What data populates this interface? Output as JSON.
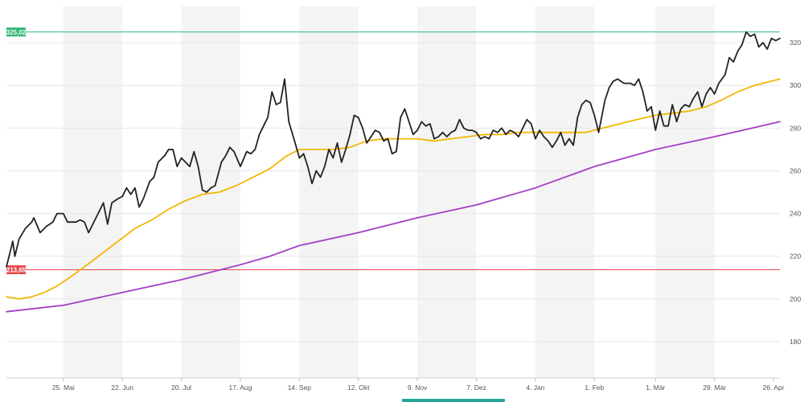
{
  "chart_data": {
    "type": "line",
    "title": "",
    "xlabel": "",
    "ylabel": "",
    "ylim": [
      163,
      337
    ],
    "y_ticks": [
      180,
      200,
      220,
      240,
      260,
      280,
      300,
      320
    ],
    "x_range": [
      "2023-04-28",
      "2024-04-29"
    ],
    "x_ticks": [
      {
        "date": "2023-05-25",
        "label": "25. Mai"
      },
      {
        "date": "2023-06-22",
        "label": "22. Jun"
      },
      {
        "date": "2023-07-20",
        "label": "20. Jul"
      },
      {
        "date": "2023-08-17",
        "label": "17. Aug"
      },
      {
        "date": "2023-09-14",
        "label": "14. Sep"
      },
      {
        "date": "2023-10-12",
        "label": "12. Okt"
      },
      {
        "date": "2023-11-09",
        "label": "9. Nov"
      },
      {
        "date": "2023-12-07",
        "label": "7. Dez"
      },
      {
        "date": "2024-01-04",
        "label": "4. Jan"
      },
      {
        "date": "2024-02-01",
        "label": "1. Feb"
      },
      {
        "date": "2024-03-01",
        "label": "1. Mär"
      },
      {
        "date": "2024-03-29",
        "label": "29. Mär"
      },
      {
        "date": "2024-04-26",
        "label": "26. Apr"
      }
    ],
    "grid": true,
    "legend": "none",
    "reference_lines": [
      {
        "label": "325,02",
        "value": 325.02,
        "color": "#2bb673"
      },
      {
        "label": "213,65",
        "value": 213.65,
        "color": "#e5484d"
      }
    ],
    "series": [
      {
        "color": "#222222",
        "points": [
          [
            "2023-04-28",
            215
          ],
          [
            "2023-05-01",
            227
          ],
          [
            "2023-05-02",
            220
          ],
          [
            "2023-05-04",
            228
          ],
          [
            "2023-05-07",
            233
          ],
          [
            "2023-05-10",
            236
          ],
          [
            "2023-05-11",
            238
          ],
          [
            "2023-05-14",
            231
          ],
          [
            "2023-05-17",
            234
          ],
          [
            "2023-05-20",
            236
          ],
          [
            "2023-05-22",
            240
          ],
          [
            "2023-05-25",
            240
          ],
          [
            "2023-05-27",
            236
          ],
          [
            "2023-05-31",
            236
          ],
          [
            "2023-06-02",
            237
          ],
          [
            "2023-06-04",
            236
          ],
          [
            "2023-06-06",
            231
          ],
          [
            "2023-06-09",
            237
          ],
          [
            "2023-06-13",
            245
          ],
          [
            "2023-06-15",
            235
          ],
          [
            "2023-06-17",
            245
          ],
          [
            "2023-06-20",
            247
          ],
          [
            "2023-06-22",
            248
          ],
          [
            "2023-06-24",
            252
          ],
          [
            "2023-06-26",
            249
          ],
          [
            "2023-06-28",
            252
          ],
          [
            "2023-06-30",
            243
          ],
          [
            "2023-07-02",
            247
          ],
          [
            "2023-07-05",
            255
          ],
          [
            "2023-07-07",
            257
          ],
          [
            "2023-07-09",
            264
          ],
          [
            "2023-07-12",
            267
          ],
          [
            "2023-07-14",
            270
          ],
          [
            "2023-07-16",
            270
          ],
          [
            "2023-07-18",
            262
          ],
          [
            "2023-07-20",
            266
          ],
          [
            "2023-07-22",
            264
          ],
          [
            "2023-07-24",
            262
          ],
          [
            "2023-07-26",
            269
          ],
          [
            "2023-07-28",
            262
          ],
          [
            "2023-07-30",
            251
          ],
          [
            "2023-08-01",
            250
          ],
          [
            "2023-08-03",
            252
          ],
          [
            "2023-08-05",
            253
          ],
          [
            "2023-08-08",
            264
          ],
          [
            "2023-08-10",
            267
          ],
          [
            "2023-08-12",
            271
          ],
          [
            "2023-08-14",
            269
          ],
          [
            "2023-08-17",
            262
          ],
          [
            "2023-08-20",
            269
          ],
          [
            "2023-08-22",
            268
          ],
          [
            "2023-08-24",
            270
          ],
          [
            "2023-08-26",
            277
          ],
          [
            "2023-08-28",
            281
          ],
          [
            "2023-08-30",
            285
          ],
          [
            "2023-09-01",
            297
          ],
          [
            "2023-09-03",
            291
          ],
          [
            "2023-09-05",
            292
          ],
          [
            "2023-09-07",
            303
          ],
          [
            "2023-09-09",
            283
          ],
          [
            "2023-09-12",
            273
          ],
          [
            "2023-09-14",
            266
          ],
          [
            "2023-09-16",
            268
          ],
          [
            "2023-09-18",
            262
          ],
          [
            "2023-09-20",
            254
          ],
          [
            "2023-09-22",
            260
          ],
          [
            "2023-09-24",
            257
          ],
          [
            "2023-09-26",
            262
          ],
          [
            "2023-09-28",
            270
          ],
          [
            "2023-09-30",
            266
          ],
          [
            "2023-10-02",
            273
          ],
          [
            "2023-10-04",
            264
          ],
          [
            "2023-10-06",
            270
          ],
          [
            "2023-10-08",
            277
          ],
          [
            "2023-10-10",
            286
          ],
          [
            "2023-10-12",
            285
          ],
          [
            "2023-10-14",
            280
          ],
          [
            "2023-10-16",
            273
          ],
          [
            "2023-10-18",
            276
          ],
          [
            "2023-10-20",
            279
          ],
          [
            "2023-10-22",
            278
          ],
          [
            "2023-10-24",
            274
          ],
          [
            "2023-10-26",
            275
          ],
          [
            "2023-10-28",
            268
          ],
          [
            "2023-10-30",
            269
          ],
          [
            "2023-11-01",
            285
          ],
          [
            "2023-11-03",
            289
          ],
          [
            "2023-11-05",
            283
          ],
          [
            "2023-11-07",
            277
          ],
          [
            "2023-11-09",
            279
          ],
          [
            "2023-11-11",
            283
          ],
          [
            "2023-11-13",
            281
          ],
          [
            "2023-11-15",
            282
          ],
          [
            "2023-11-17",
            275
          ],
          [
            "2023-11-19",
            276
          ],
          [
            "2023-11-21",
            278
          ],
          [
            "2023-11-23",
            276
          ],
          [
            "2023-11-25",
            278
          ],
          [
            "2023-11-27",
            279
          ],
          [
            "2023-11-29",
            284
          ],
          [
            "2023-12-01",
            280
          ],
          [
            "2023-12-03",
            279
          ],
          [
            "2023-12-05",
            279
          ],
          [
            "2023-12-07",
            278
          ],
          [
            "2023-12-09",
            275
          ],
          [
            "2023-12-11",
            276
          ],
          [
            "2023-12-13",
            275
          ],
          [
            "2023-12-15",
            279
          ],
          [
            "2023-12-17",
            278
          ],
          [
            "2023-12-19",
            280
          ],
          [
            "2023-12-21",
            277
          ],
          [
            "2023-12-23",
            279
          ],
          [
            "2023-12-25",
            278
          ],
          [
            "2023-12-27",
            276
          ],
          [
            "2023-12-29",
            280
          ],
          [
            "2023-12-31",
            284
          ],
          [
            "2024-01-02",
            282
          ],
          [
            "2024-01-04",
            275
          ],
          [
            "2024-01-06",
            279
          ],
          [
            "2024-01-08",
            276
          ],
          [
            "2024-01-10",
            274
          ],
          [
            "2024-01-12",
            271
          ],
          [
            "2024-01-14",
            274
          ],
          [
            "2024-01-16",
            278
          ],
          [
            "2024-01-18",
            272
          ],
          [
            "2024-01-20",
            275
          ],
          [
            "2024-01-22",
            272
          ],
          [
            "2024-01-24",
            285
          ],
          [
            "2024-01-26",
            291
          ],
          [
            "2024-01-28",
            293
          ],
          [
            "2024-01-30",
            292
          ],
          [
            "2024-02-01",
            286
          ],
          [
            "2024-02-03",
            278
          ],
          [
            "2024-02-06",
            293
          ],
          [
            "2024-02-08",
            299
          ],
          [
            "2024-02-10",
            302
          ],
          [
            "2024-02-12",
            303
          ],
          [
            "2024-02-15",
            301
          ],
          [
            "2024-02-18",
            301
          ],
          [
            "2024-02-20",
            300
          ],
          [
            "2024-02-22",
            303
          ],
          [
            "2024-02-24",
            297
          ],
          [
            "2024-02-26",
            288
          ],
          [
            "2024-02-28",
            290
          ],
          [
            "2024-03-01",
            279
          ],
          [
            "2024-03-03",
            288
          ],
          [
            "2024-03-05",
            281
          ],
          [
            "2024-03-07",
            281
          ],
          [
            "2024-03-09",
            291
          ],
          [
            "2024-03-11",
            283
          ],
          [
            "2024-03-13",
            289
          ],
          [
            "2024-03-15",
            291
          ],
          [
            "2024-03-17",
            290
          ],
          [
            "2024-03-19",
            294
          ],
          [
            "2024-03-21",
            297
          ],
          [
            "2024-03-23",
            290
          ],
          [
            "2024-03-25",
            296
          ],
          [
            "2024-03-27",
            299
          ],
          [
            "2024-03-29",
            296
          ],
          [
            "2024-03-31",
            301
          ],
          [
            "2024-04-03",
            305
          ],
          [
            "2024-04-05",
            313
          ],
          [
            "2024-04-07",
            311
          ],
          [
            "2024-04-09",
            316
          ],
          [
            "2024-04-11",
            319
          ],
          [
            "2024-04-13",
            325
          ],
          [
            "2024-04-15",
            323
          ],
          [
            "2024-04-17",
            324
          ],
          [
            "2024-04-19",
            318
          ],
          [
            "2024-04-21",
            320
          ],
          [
            "2024-04-23",
            317
          ],
          [
            "2024-04-25",
            322
          ],
          [
            "2024-04-27",
            321
          ],
          [
            "2024-04-29",
            322
          ]
        ]
      },
      {
        "color": "#f2b705",
        "points": [
          [
            "2023-04-28",
            201
          ],
          [
            "2023-05-04",
            200
          ],
          [
            "2023-05-10",
            201
          ],
          [
            "2023-05-16",
            203
          ],
          [
            "2023-05-22",
            206
          ],
          [
            "2023-05-28",
            210
          ],
          [
            "2023-06-04",
            215
          ],
          [
            "2023-06-12",
            221
          ],
          [
            "2023-06-20",
            227
          ],
          [
            "2023-06-28",
            233
          ],
          [
            "2023-07-06",
            237
          ],
          [
            "2023-07-14",
            242
          ],
          [
            "2023-07-22",
            246
          ],
          [
            "2023-07-30",
            249
          ],
          [
            "2023-08-07",
            250
          ],
          [
            "2023-08-15",
            253
          ],
          [
            "2023-08-23",
            257
          ],
          [
            "2023-08-31",
            261
          ],
          [
            "2023-09-08",
            267
          ],
          [
            "2023-09-14",
            270
          ],
          [
            "2023-09-22",
            270
          ],
          [
            "2023-09-30",
            270
          ],
          [
            "2023-10-08",
            271
          ],
          [
            "2023-10-16",
            274
          ],
          [
            "2023-10-24",
            275
          ],
          [
            "2023-11-01",
            275
          ],
          [
            "2023-11-09",
            275
          ],
          [
            "2023-11-17",
            274
          ],
          [
            "2023-11-25",
            275
          ],
          [
            "2023-12-03",
            276
          ],
          [
            "2023-12-11",
            277
          ],
          [
            "2023-12-19",
            277
          ],
          [
            "2023-12-27",
            278
          ],
          [
            "2024-01-04",
            278
          ],
          [
            "2024-01-12",
            278
          ],
          [
            "2024-01-20",
            278
          ],
          [
            "2024-01-28",
            278
          ],
          [
            "2024-02-05",
            280
          ],
          [
            "2024-02-13",
            282
          ],
          [
            "2024-02-21",
            284
          ],
          [
            "2024-03-01",
            286
          ],
          [
            "2024-03-09",
            287
          ],
          [
            "2024-03-17",
            288
          ],
          [
            "2024-03-25",
            290
          ],
          [
            "2024-04-01",
            293
          ],
          [
            "2024-04-09",
            297
          ],
          [
            "2024-04-17",
            300
          ],
          [
            "2024-04-29",
            303
          ]
        ]
      },
      {
        "color": "#a53fc6",
        "points": [
          [
            "2023-04-28",
            194
          ],
          [
            "2023-05-25",
            197
          ],
          [
            "2023-06-22",
            203
          ],
          [
            "2023-07-20",
            209
          ],
          [
            "2023-08-17",
            216
          ],
          [
            "2023-08-31",
            220
          ],
          [
            "2023-09-14",
            225
          ],
          [
            "2023-10-12",
            231
          ],
          [
            "2023-11-09",
            238
          ],
          [
            "2023-12-07",
            244
          ],
          [
            "2024-01-04",
            252
          ],
          [
            "2024-02-01",
            262
          ],
          [
            "2024-03-01",
            270
          ],
          [
            "2024-03-29",
            276
          ],
          [
            "2024-04-29",
            283
          ]
        ]
      }
    ]
  }
}
